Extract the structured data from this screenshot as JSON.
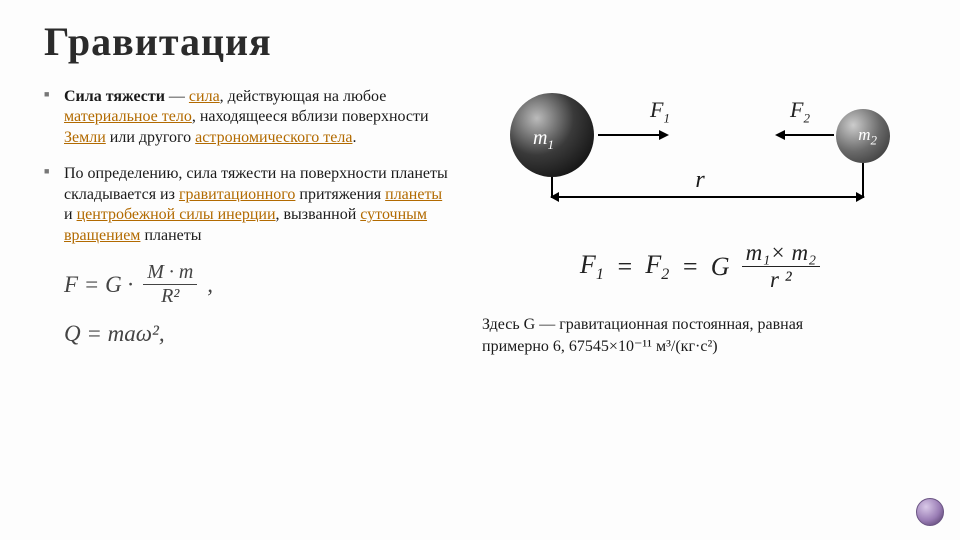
{
  "title": "Гравитация",
  "bullets": {
    "b1": {
      "lead": "Сила тяжести",
      "dash": " — ",
      "l_force": "сила",
      "t1": ", действующая на любое ",
      "l_body": "материальное тело",
      "t2": ", находящееся вблизи поверхности ",
      "l_earth": "Земли",
      "t3": " или другого ",
      "l_astro": "астрономического тела",
      "t4": "."
    },
    "b2": {
      "t1": "По определению, сила тяжести на поверхности планеты складывается из ",
      "l_grav": "гравитационного",
      "t2": " притяжения ",
      "l_planet": "планеты",
      "t3": " и ",
      "l_centr": "центробежной силы инерции",
      "t4": ", вызванной ",
      "l_rot": "суточным вращением",
      "t5": " планеты"
    }
  },
  "left_formulas": {
    "f1": {
      "lhs": "F = G ·",
      "num": "M · m",
      "den": "R²",
      "tail": ","
    },
    "f2": {
      "text": "Q = maω²,"
    }
  },
  "diagram": {
    "m1": "m",
    "m1sub": "1",
    "m2": "m",
    "m2sub": "2",
    "F1": "F",
    "F1sub": "1",
    "F2": "F",
    "F2sub": "2",
    "r": "r",
    "colors": {
      "ball1": "#000000",
      "ball2": "#555555",
      "line": "#000000"
    }
  },
  "big_formula": {
    "F1": "F",
    "F1sub": "1",
    "eq": "=",
    "F2": "F",
    "F2sub": "2",
    "eq2": "=",
    "G": "G",
    "num": "m₁× m₂",
    "den": "r ²"
  },
  "caption": {
    "line1": "Здесь G — гравитационная постоянная, равная",
    "line2": "примерно 6, 67545×10⁻¹¹ м³/(кг·с²)"
  }
}
